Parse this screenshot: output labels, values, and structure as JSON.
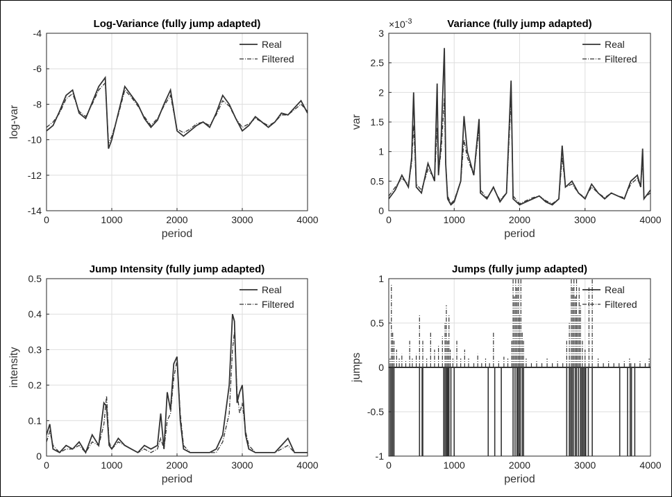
{
  "chart_data": [
    {
      "type": "line",
      "title": "Log-Variance (fully jump adapted)",
      "xlabel": "period",
      "ylabel": "log-var",
      "xlim": [
        0,
        4000
      ],
      "ylim": [
        -14,
        -4
      ],
      "xticks": [
        "0",
        "1000",
        "2000",
        "3000",
        "4000"
      ],
      "yticks": [
        "-14",
        "-12",
        "-10",
        "-8",
        "-6",
        "-4"
      ],
      "exponent_label": "",
      "grid": true,
      "legend": "top-right",
      "legend_entries": [
        "Real",
        "Filtered"
      ],
      "series": [
        {
          "name": "Real",
          "style": "solid",
          "x": [
            0,
            100,
            200,
            300,
            400,
            500,
            600,
            700,
            800,
            900,
            950,
            1000,
            1100,
            1200,
            1300,
            1400,
            1500,
            1600,
            1700,
            1800,
            1900,
            2000,
            2100,
            2200,
            2300,
            2400,
            2500,
            2600,
            2700,
            2800,
            2900,
            3000,
            3100,
            3200,
            3300,
            3400,
            3500,
            3600,
            3700,
            3800,
            3900,
            4000
          ],
          "y": [
            -9.5,
            -9.2,
            -8.4,
            -7.5,
            -7.2,
            -8.5,
            -8.8,
            -7.9,
            -7.0,
            -6.5,
            -10.5,
            -10.0,
            -8.5,
            -7.0,
            -7.5,
            -8.0,
            -8.8,
            -9.3,
            -8.9,
            -8.0,
            -7.2,
            -9.5,
            -9.8,
            -9.5,
            -9.2,
            -9.0,
            -9.3,
            -8.5,
            -7.5,
            -8.0,
            -8.8,
            -9.5,
            -9.2,
            -8.7,
            -9.0,
            -9.3,
            -9.0,
            -8.5,
            -8.6,
            -8.2,
            -7.8,
            -8.5
          ]
        },
        {
          "name": "Filtered",
          "style": "dashdot",
          "x": [
            0,
            100,
            200,
            300,
            400,
            500,
            600,
            700,
            800,
            900,
            950,
            1000,
            1100,
            1200,
            1300,
            1400,
            1500,
            1600,
            1700,
            1800,
            1900,
            2000,
            2100,
            2200,
            2300,
            2400,
            2500,
            2600,
            2700,
            2800,
            2900,
            3000,
            3100,
            3200,
            3300,
            3400,
            3500,
            3600,
            3700,
            3800,
            3900,
            4000
          ],
          "y": [
            -9.3,
            -9.0,
            -8.5,
            -7.7,
            -7.4,
            -8.4,
            -8.7,
            -8.0,
            -7.2,
            -6.8,
            -10.2,
            -9.8,
            -8.6,
            -7.2,
            -7.6,
            -8.1,
            -8.7,
            -9.2,
            -8.8,
            -8.1,
            -7.5,
            -9.4,
            -9.6,
            -9.4,
            -9.1,
            -9.0,
            -9.2,
            -8.6,
            -7.8,
            -8.1,
            -8.8,
            -9.3,
            -9.1,
            -8.8,
            -9.0,
            -9.2,
            -9.0,
            -8.6,
            -8.6,
            -8.3,
            -8.0,
            -8.4
          ]
        }
      ]
    },
    {
      "type": "line",
      "title": "Variance (fully jump adapted)",
      "xlabel": "period",
      "ylabel": "var",
      "xlim": [
        0,
        4000
      ],
      "ylim": [
        0,
        3
      ],
      "xticks": [
        "0",
        "1000",
        "2000",
        "3000",
        "4000"
      ],
      "yticks": [
        "0",
        "0.5",
        "1",
        "1.5",
        "2",
        "2.5",
        "3"
      ],
      "exponent_label": "×10-3",
      "grid": true,
      "legend": "top-right",
      "legend_entries": [
        "Real",
        "Filtered"
      ],
      "series": [
        {
          "name": "Real",
          "style": "solid",
          "x": [
            0,
            100,
            200,
            300,
            350,
            380,
            420,
            500,
            600,
            700,
            740,
            760,
            800,
            850,
            870,
            900,
            950,
            1000,
            1100,
            1150,
            1200,
            1300,
            1380,
            1400,
            1500,
            1600,
            1700,
            1800,
            1870,
            1900,
            2000,
            2100,
            2200,
            2300,
            2400,
            2500,
            2600,
            2650,
            2700,
            2800,
            2900,
            3000,
            3100,
            3200,
            3300,
            3400,
            3500,
            3600,
            3700,
            3800,
            3850,
            3880,
            3900,
            4000
          ],
          "y": [
            0.2,
            0.35,
            0.6,
            0.4,
            0.9,
            2.0,
            0.4,
            0.3,
            0.8,
            0.5,
            2.15,
            0.6,
            1.2,
            2.75,
            0.8,
            0.2,
            0.1,
            0.15,
            0.5,
            1.6,
            1.0,
            0.6,
            1.55,
            0.3,
            0.2,
            0.4,
            0.15,
            0.3,
            2.2,
            0.2,
            0.1,
            0.15,
            0.2,
            0.25,
            0.15,
            0.1,
            0.2,
            1.1,
            0.4,
            0.5,
            0.3,
            0.2,
            0.45,
            0.3,
            0.2,
            0.3,
            0.25,
            0.2,
            0.5,
            0.6,
            0.4,
            1.05,
            0.2,
            0.35
          ]
        },
        {
          "name": "Filtered",
          "style": "dashdot",
          "x": [
            0,
            100,
            200,
            300,
            350,
            380,
            420,
            500,
            600,
            700,
            740,
            760,
            800,
            850,
            870,
            900,
            950,
            1000,
            1100,
            1150,
            1200,
            1300,
            1380,
            1400,
            1500,
            1600,
            1700,
            1800,
            1870,
            1900,
            2000,
            2100,
            2200,
            2300,
            2400,
            2500,
            2600,
            2650,
            2700,
            2800,
            2900,
            3000,
            3100,
            3200,
            3300,
            3400,
            3500,
            3600,
            3700,
            3800,
            3850,
            3880,
            3900,
            4000
          ],
          "y": [
            0.25,
            0.4,
            0.55,
            0.45,
            0.8,
            1.45,
            0.45,
            0.35,
            0.7,
            0.55,
            1.4,
            0.65,
            1.0,
            1.9,
            0.8,
            0.25,
            0.12,
            0.18,
            0.5,
            1.2,
            0.9,
            0.6,
            1.4,
            0.35,
            0.22,
            0.38,
            0.18,
            0.3,
            1.9,
            0.25,
            0.12,
            0.17,
            0.22,
            0.25,
            0.17,
            0.12,
            0.2,
            0.9,
            0.4,
            0.45,
            0.3,
            0.22,
            0.4,
            0.3,
            0.22,
            0.3,
            0.25,
            0.22,
            0.45,
            0.55,
            0.4,
            0.85,
            0.22,
            0.3
          ]
        }
      ]
    },
    {
      "type": "line",
      "title": "Jump Intensity (fully jump adapted)",
      "xlabel": "period",
      "ylabel": "intensity",
      "xlim": [
        0,
        4000
      ],
      "ylim": [
        0,
        0.5
      ],
      "xticks": [
        "0",
        "1000",
        "2000",
        "3000",
        "4000"
      ],
      "yticks": [
        "0",
        "0.1",
        "0.2",
        "0.3",
        "0.4",
        "0.5"
      ],
      "exponent_label": "",
      "grid": true,
      "legend": "top-right",
      "legend_entries": [
        "Real",
        "Filtered"
      ],
      "series": [
        {
          "name": "Real",
          "style": "solid",
          "x": [
            0,
            50,
            100,
            200,
            300,
            400,
            500,
            600,
            700,
            800,
            880,
            920,
            960,
            1000,
            1100,
            1200,
            1300,
            1400,
            1500,
            1600,
            1700,
            1750,
            1800,
            1850,
            1900,
            1950,
            2000,
            2050,
            2100,
            2200,
            2300,
            2400,
            2500,
            2600,
            2700,
            2800,
            2850,
            2880,
            2920,
            2960,
            3000,
            3050,
            3100,
            3200,
            3300,
            3400,
            3500,
            3600,
            3700,
            3800,
            3900,
            4000
          ],
          "y": [
            0.06,
            0.09,
            0.02,
            0.01,
            0.03,
            0.02,
            0.04,
            0.01,
            0.06,
            0.03,
            0.15,
            0.14,
            0.03,
            0.02,
            0.05,
            0.03,
            0.02,
            0.01,
            0.03,
            0.02,
            0.03,
            0.12,
            0.02,
            0.18,
            0.13,
            0.26,
            0.28,
            0.1,
            0.02,
            0.01,
            0.01,
            0.01,
            0.01,
            0.02,
            0.06,
            0.2,
            0.4,
            0.38,
            0.15,
            0.18,
            0.2,
            0.06,
            0.02,
            0.01,
            0.01,
            0.01,
            0.01,
            0.03,
            0.05,
            0.01,
            0.01,
            0.01
          ]
        },
        {
          "name": "Filtered",
          "style": "dashdot",
          "x": [
            0,
            50,
            100,
            200,
            300,
            400,
            500,
            600,
            700,
            800,
            880,
            920,
            960,
            1000,
            1100,
            1200,
            1300,
            1400,
            1500,
            1600,
            1700,
            1750,
            1800,
            1850,
            1900,
            1950,
            2000,
            2050,
            2100,
            2200,
            2300,
            2400,
            2500,
            2600,
            2700,
            2800,
            2850,
            2880,
            2920,
            2960,
            3000,
            3050,
            3100,
            3200,
            3300,
            3400,
            3500,
            3600,
            3700,
            3800,
            3900,
            4000
          ],
          "y": [
            0.04,
            0.07,
            0.03,
            0.01,
            0.02,
            0.02,
            0.03,
            0.01,
            0.04,
            0.03,
            0.09,
            0.17,
            0.04,
            0.02,
            0.04,
            0.03,
            0.02,
            0.01,
            0.02,
            0.01,
            0.02,
            0.05,
            0.02,
            0.1,
            0.12,
            0.22,
            0.27,
            0.12,
            0.03,
            0.01,
            0.01,
            0.01,
            0.01,
            0.01,
            0.04,
            0.12,
            0.3,
            0.35,
            0.18,
            0.12,
            0.15,
            0.07,
            0.03,
            0.01,
            0.01,
            0.01,
            0.01,
            0.02,
            0.03,
            0.01,
            0.01,
            0.01
          ]
        }
      ]
    },
    {
      "type": "line",
      "title": "Jumps (fully jump adapted)",
      "xlabel": "period",
      "ylabel": "jumps",
      "xlim": [
        0,
        4000
      ],
      "ylim": [
        -1,
        1
      ],
      "xticks": [
        "0",
        "1000",
        "2000",
        "3000",
        "4000"
      ],
      "yticks": [
        "-1",
        "-0.5",
        "0",
        "0.5",
        "1"
      ],
      "exponent_label": "",
      "grid": true,
      "legend": "top-right",
      "legend_entries": [
        "Real",
        "Filtered"
      ],
      "series": [
        {
          "name": "Real",
          "style": "solid",
          "x": [
            20,
            40,
            60,
            80,
            470,
            510,
            520,
            840,
            860,
            880,
            890,
            900,
            910,
            920,
            950,
            1000,
            1520,
            1620,
            1720,
            1900,
            1930,
            1960,
            1970,
            1990,
            2010,
            2040,
            2060,
            2720,
            2760,
            2780,
            2800,
            2820,
            2850,
            2870,
            2900,
            2930,
            2950,
            2960,
            2980,
            3000,
            3010,
            3050,
            3110,
            3530,
            3650,
            3690,
            3710,
            3760
          ],
          "y": [
            -1,
            -1,
            -1,
            -1,
            -1,
            -1,
            -1,
            -1,
            -1,
            -1,
            -1,
            -1,
            -1,
            -1,
            -1,
            -1,
            -1,
            -1,
            -1,
            -1,
            -1,
            -1,
            -1,
            -1,
            -1,
            -1,
            -1,
            -1,
            -1,
            -1,
            -1,
            -1,
            -1,
            -1,
            -1,
            -1,
            -1,
            -1,
            -1,
            -1,
            -1,
            -1,
            -1,
            -1,
            -1,
            -1,
            -1,
            -1
          ]
        },
        {
          "name": "Filtered",
          "style": "dashdot",
          "x": [
            20,
            40,
            60,
            80,
            120,
            160,
            200,
            260,
            320,
            360,
            420,
            470,
            520,
            580,
            640,
            700,
            760,
            820,
            860,
            880,
            900,
            920,
            940,
            980,
            1040,
            1100,
            1160,
            1220,
            1300,
            1360,
            1420,
            1480,
            1540,
            1600,
            1680,
            1760,
            1820,
            1880,
            1900,
            1920,
            1940,
            1960,
            1980,
            2000,
            2020,
            2040,
            2060,
            2100,
            2180,
            2260,
            2340,
            2420,
            2500,
            2580,
            2660,
            2720,
            2760,
            2790,
            2810,
            2830,
            2850,
            2870,
            2890,
            2910,
            2930,
            2960,
            3000,
            3060,
            3110,
            3200,
            3280,
            3360,
            3440,
            3520,
            3600,
            3680,
            3700,
            3760,
            3840,
            3920,
            3980
          ],
          "y": [
            0.1,
            0.93,
            0.4,
            0.3,
            0.2,
            0.1,
            0.15,
            0.08,
            0.3,
            0.1,
            0.15,
            0.6,
            0.3,
            0.1,
            0.4,
            0.2,
            0.25,
            0.35,
            0.5,
            0.7,
            0.3,
            0.6,
            0.2,
            0.1,
            0.3,
            0.1,
            0.2,
            0.1,
            0.05,
            0.15,
            0.05,
            0.1,
            0.05,
            0.4,
            0.08,
            0.12,
            0.1,
            0.3,
            1.0,
            0.8,
            1.0,
            0.9,
            1.0,
            0.6,
            1.0,
            0.4,
            0.3,
            0.1,
            0.05,
            0.08,
            0.05,
            0.1,
            0.05,
            0.08,
            0.05,
            0.3,
            0.5,
            1.0,
            0.9,
            1.0,
            0.8,
            1.0,
            0.6,
            0.9,
            0.7,
            0.3,
            0.2,
            0.9,
            1.0,
            0.1,
            0.05,
            0.08,
            0.05,
            0.06,
            0.08,
            0.1,
            0.06,
            0.05,
            0.08,
            0.05,
            0.1
          ]
        }
      ]
    }
  ]
}
